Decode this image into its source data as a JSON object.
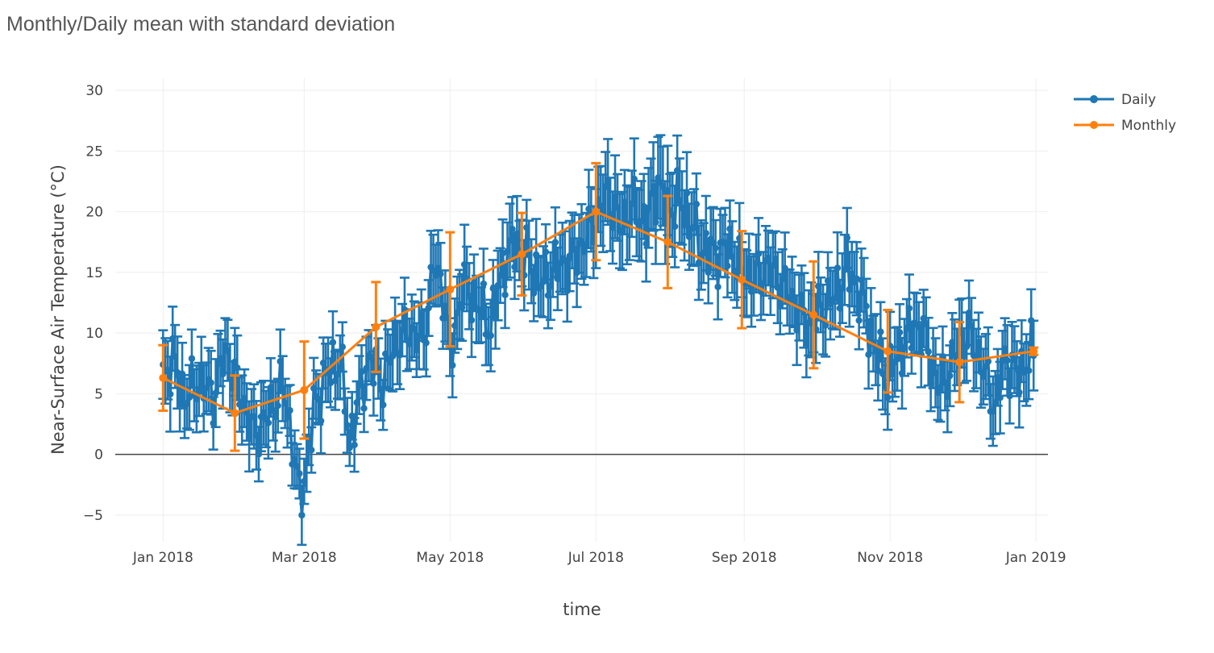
{
  "chart_data": {
    "type": "line",
    "title": "Monthly/Daily mean with standard deviation",
    "xlabel": "time",
    "ylabel": "Near-Surface Air Temperature (°C)",
    "xlim": [
      "2017-12-12",
      "2019-01-06"
    ],
    "ylim": [
      -7.2,
      31
    ],
    "x_ticks": [
      "2018-01-01",
      "2018-03-01",
      "2018-05-01",
      "2018-07-01",
      "2018-09-01",
      "2018-11-01",
      "2019-01-01"
    ],
    "x_tick_labels": [
      "Jan 2018",
      "Mar 2018",
      "May 2018",
      "Jul 2018",
      "Sep 2018",
      "Nov 2018",
      "Jan 2019"
    ],
    "y_ticks": [
      -5,
      0,
      5,
      10,
      15,
      20,
      25,
      30
    ],
    "y_tick_labels": [
      "−5",
      "0",
      "5",
      "10",
      "15",
      "20",
      "25",
      "30"
    ],
    "grid": true,
    "zero_line": true,
    "legend_position": "top-right",
    "series": [
      {
        "name": "Daily",
        "color": "#1f77b4",
        "anchors": [
          [
            "2018-01-01",
            6.3,
            2.6
          ],
          [
            "2018-01-05",
            7.8,
            2.8
          ],
          [
            "2018-01-10",
            4.6,
            2.4
          ],
          [
            "2018-01-16",
            6.0,
            2.4
          ],
          [
            "2018-01-22",
            4.8,
            2.5
          ],
          [
            "2018-01-27",
            8.5,
            2.5
          ],
          [
            "2018-01-31",
            6.2,
            2.6
          ],
          [
            "2018-02-04",
            4.0,
            2.5
          ],
          [
            "2018-02-08",
            1.6,
            2.6
          ],
          [
            "2018-02-14",
            3.3,
            2.6
          ],
          [
            "2018-02-20",
            5.7,
            2.5
          ],
          [
            "2018-02-24",
            1.2,
            2.0
          ],
          [
            "2018-02-27",
            -3.5,
            2.1
          ],
          [
            "2018-03-01",
            -2.2,
            2.2
          ],
          [
            "2018-03-05",
            3.6,
            2.2
          ],
          [
            "2018-03-10",
            6.5,
            2.4
          ],
          [
            "2018-03-16",
            7.8,
            2.3
          ],
          [
            "2018-03-20",
            1.0,
            1.8
          ],
          [
            "2018-03-23",
            3.8,
            2.1
          ],
          [
            "2018-03-28",
            7.8,
            2.3
          ],
          [
            "2018-04-03",
            6.0,
            2.4
          ],
          [
            "2018-04-08",
            9.2,
            2.6
          ],
          [
            "2018-04-14",
            10.2,
            2.4
          ],
          [
            "2018-04-20",
            9.4,
            2.4
          ],
          [
            "2018-04-24",
            15.6,
            2.9
          ],
          [
            "2018-04-29",
            12.8,
            2.6
          ],
          [
            "2018-05-01",
            7.5,
            2.3
          ],
          [
            "2018-05-06",
            14.0,
            3.0
          ],
          [
            "2018-05-12",
            12.5,
            2.6
          ],
          [
            "2018-05-18",
            10.5,
            2.6
          ],
          [
            "2018-05-23",
            15.5,
            2.6
          ],
          [
            "2018-05-28",
            17.5,
            2.8
          ],
          [
            "2018-06-03",
            16.0,
            2.6
          ],
          [
            "2018-06-08",
            14.0,
            2.6
          ],
          [
            "2018-06-14",
            15.5,
            2.6
          ],
          [
            "2018-06-20",
            15.8,
            2.6
          ],
          [
            "2018-06-26",
            17.5,
            2.8
          ],
          [
            "2018-07-01",
            19.5,
            3.0
          ],
          [
            "2018-07-06",
            21.5,
            3.2
          ],
          [
            "2018-07-11",
            18.8,
            3.0
          ],
          [
            "2018-07-16",
            20.5,
            3.0
          ],
          [
            "2018-07-22",
            19.0,
            3.0
          ],
          [
            "2018-07-27",
            22.5,
            3.6
          ],
          [
            "2018-07-31",
            20.0,
            3.4
          ],
          [
            "2018-08-04",
            21.0,
            3.2
          ],
          [
            "2018-08-09",
            19.5,
            3.0
          ],
          [
            "2018-08-14",
            17.0,
            2.8
          ],
          [
            "2018-08-20",
            16.5,
            2.6
          ],
          [
            "2018-08-26",
            17.0,
            2.6
          ],
          [
            "2018-08-31",
            15.0,
            2.6
          ],
          [
            "2018-09-05",
            14.5,
            2.6
          ],
          [
            "2018-09-11",
            15.5,
            2.6
          ],
          [
            "2018-09-17",
            14.0,
            2.6
          ],
          [
            "2018-09-22",
            12.5,
            2.6
          ],
          [
            "2018-09-28",
            10.5,
            2.8
          ],
          [
            "2018-10-03",
            12.0,
            2.6
          ],
          [
            "2018-10-09",
            13.0,
            2.6
          ],
          [
            "2018-10-14",
            15.5,
            2.8
          ],
          [
            "2018-10-20",
            13.0,
            2.6
          ],
          [
            "2018-10-26",
            8.5,
            2.6
          ],
          [
            "2018-10-31",
            6.2,
            2.6
          ],
          [
            "2018-11-05",
            8.5,
            2.6
          ],
          [
            "2018-11-11",
            10.8,
            2.4
          ],
          [
            "2018-11-16",
            9.5,
            2.4
          ],
          [
            "2018-11-21",
            5.5,
            2.6
          ],
          [
            "2018-11-26",
            6.8,
            2.6
          ],
          [
            "2018-11-30",
            9.5,
            2.6
          ],
          [
            "2018-12-05",
            9.8,
            2.6
          ],
          [
            "2018-12-10",
            7.0,
            2.6
          ],
          [
            "2018-12-15",
            4.0,
            2.6
          ],
          [
            "2018-12-19",
            8.0,
            2.6
          ],
          [
            "2018-12-24",
            6.5,
            2.6
          ],
          [
            "2018-12-31",
            8.5,
            2.6
          ]
        ]
      },
      {
        "name": "Monthly",
        "color": "#ff7f0e",
        "x": [
          "2018-01-01",
          "2018-01-31",
          "2018-03-01",
          "2018-03-31",
          "2018-05-01",
          "2018-05-31",
          "2018-07-01",
          "2018-07-31",
          "2018-08-31",
          "2018-09-30",
          "2018-10-31",
          "2018-11-30",
          "2018-12-31"
        ],
        "y": [
          6.3,
          3.4,
          5.3,
          10.5,
          13.6,
          16.5,
          20.0,
          17.5,
          14.4,
          11.5,
          8.5,
          7.6,
          8.5
        ],
        "error": [
          2.7,
          3.1,
          4.0,
          3.7,
          4.7,
          3.4,
          4.0,
          3.8,
          4.0,
          4.4,
          3.4,
          3.3,
          0.3
        ]
      }
    ]
  }
}
